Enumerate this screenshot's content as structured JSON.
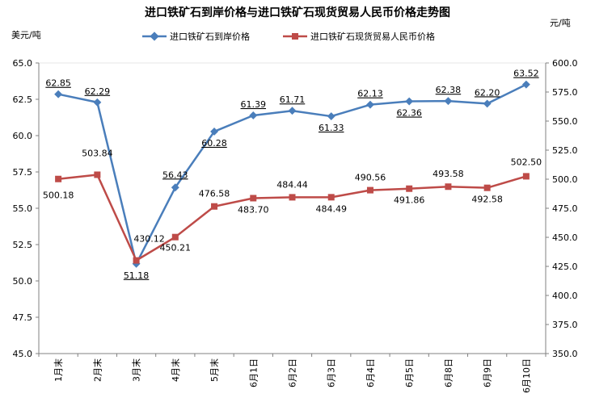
{
  "chart_data": {
    "type": "line",
    "title": "进口铁矿石到岸价格与进口铁矿石现货贸易人民币价格走势图",
    "ylabel_left": "美元/吨",
    "ylabel_right": "元/吨",
    "categories": [
      "1月末",
      "2月末",
      "3月末",
      "4月末",
      "5月末",
      "6月1日",
      "6月2日",
      "6月3日",
      "6月4日",
      "6月5日",
      "6月8日",
      "6月9日",
      "6月10日"
    ],
    "y_left": {
      "lim": [
        45.0,
        65.0
      ],
      "ticks": [
        "45.0",
        "47.5",
        "50.0",
        "52.5",
        "55.0",
        "57.5",
        "60.0",
        "62.5",
        "65.0"
      ]
    },
    "y_right": {
      "lim": [
        350.0,
        600.0
      ],
      "ticks": [
        "350.0",
        "375.0",
        "400.0",
        "425.0",
        "450.0",
        "475.0",
        "500.0",
        "525.0",
        "550.0",
        "575.0",
        "600.0"
      ]
    },
    "legend_position": "top",
    "series": [
      {
        "name": "进口铁矿石到岸价格",
        "axis": "left",
        "color": "#4a7ebb",
        "marker": "diamond",
        "values": [
          62.85,
          62.29,
          51.18,
          56.43,
          60.28,
          61.39,
          61.71,
          61.33,
          62.13,
          62.36,
          62.38,
          62.2,
          63.52
        ],
        "labels": [
          "62.85",
          "62.29",
          "51.18",
          "56.43",
          "60.28",
          "61.39",
          "61.71",
          "61.33",
          "62.13",
          "62.36",
          "62.38",
          "62.20",
          "63.52"
        ]
      },
      {
        "name": "进口铁矿石现货贸易人民币价格",
        "axis": "right",
        "color": "#be4b48",
        "marker": "square",
        "values": [
          500.18,
          503.84,
          430.12,
          450.21,
          476.58,
          483.7,
          484.44,
          484.49,
          490.56,
          491.86,
          493.58,
          492.58,
          502.5
        ],
        "labels": [
          "500.18",
          "503.84",
          "430.12",
          "450.21",
          "476.58",
          "483.70",
          "484.44",
          "484.49",
          "490.56",
          "491.86",
          "493.58",
          "492.58",
          "502.50"
        ]
      }
    ]
  }
}
